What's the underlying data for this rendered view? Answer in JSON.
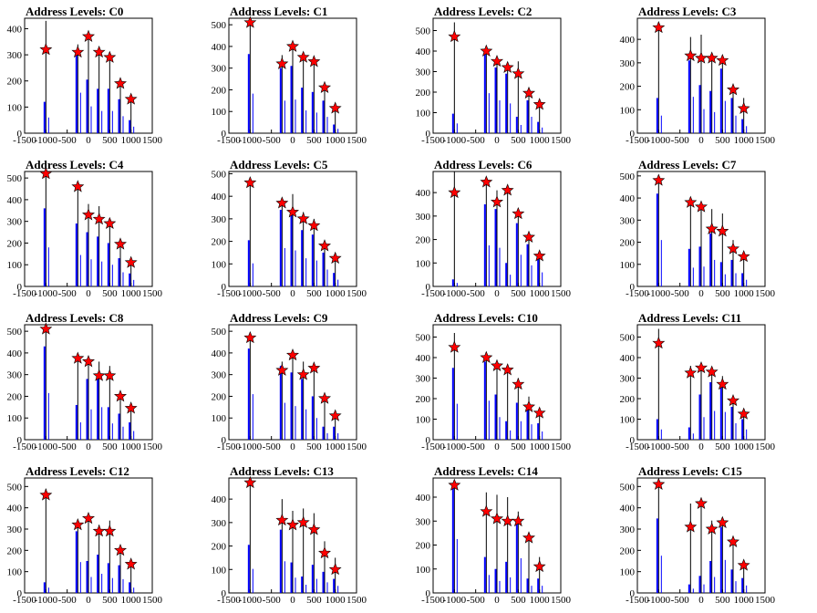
{
  "chart_data": [
    {
      "type": "bar",
      "title": "Address Levels: C0",
      "ylim": [
        0,
        440
      ],
      "yticks": [
        0,
        100,
        200,
        300,
        400
      ],
      "xlim": [
        -1500,
        1500
      ],
      "xticks": [
        -1500,
        -1000,
        -500,
        0,
        500,
        1000,
        1500
      ],
      "peaks": {
        "x": [
          -1000,
          -250,
          0,
          250,
          500,
          750,
          1000
        ],
        "black": [
          430,
          340,
          370,
          310,
          290,
          200,
          140
        ],
        "blue": [
          120,
          310,
          205,
          170,
          170,
          130,
          50
        ],
        "marker": [
          320,
          310,
          370,
          310,
          290,
          190,
          130
        ]
      }
    },
    {
      "type": "bar",
      "title": "Address Levels: C1",
      "ylim": [
        0,
        530
      ],
      "yticks": [
        0,
        100,
        200,
        300,
        400,
        500
      ],
      "xlim": [
        -1500,
        1500
      ],
      "xticks": [
        -1500,
        -1000,
        -500,
        0,
        500,
        1000,
        1500
      ],
      "peaks": {
        "x": [
          -1000,
          -250,
          0,
          250,
          500,
          750,
          1000
        ],
        "black": [
          520,
          360,
          400,
          360,
          340,
          220,
          130
        ],
        "blue": [
          365,
          300,
          310,
          210,
          190,
          150,
          40
        ],
        "marker": [
          510,
          320,
          400,
          350,
          330,
          210,
          115
        ]
      }
    },
    {
      "type": "bar",
      "title": "Address Levels: C2",
      "ylim": [
        0,
        560
      ],
      "yticks": [
        0,
        100,
        200,
        300,
        400,
        500
      ],
      "xlim": [
        -1500,
        1500
      ],
      "xticks": [
        -1500,
        -1000,
        -500,
        0,
        500,
        1000,
        1500
      ],
      "peaks": {
        "x": [
          -1000,
          -250,
          0,
          250,
          500,
          750,
          1000
        ],
        "black": [
          540,
          420,
          360,
          330,
          350,
          220,
          160
        ],
        "blue": [
          95,
          390,
          320,
          290,
          80,
          160,
          55
        ],
        "marker": [
          470,
          400,
          350,
          320,
          290,
          195,
          140
        ]
      }
    },
    {
      "type": "bar",
      "title": "Address Levels: C3",
      "ylim": [
        0,
        490
      ],
      "yticks": [
        0,
        100,
        200,
        300,
        400
      ],
      "xlim": [
        -1500,
        1500
      ],
      "xticks": [
        -1500,
        -1000,
        -500,
        0,
        500,
        1000,
        1500
      ],
      "peaks": {
        "x": [
          -1000,
          -250,
          0,
          250,
          500,
          750,
          1000
        ],
        "black": [
          470,
          410,
          420,
          330,
          310,
          200,
          150
        ],
        "blue": [
          150,
          310,
          205,
          180,
          275,
          150,
          60
        ],
        "marker": [
          450,
          330,
          320,
          320,
          310,
          185,
          105
        ]
      }
    },
    {
      "type": "bar",
      "title": "Address Levels: C4",
      "ylim": [
        0,
        530
      ],
      "yticks": [
        0,
        100,
        200,
        300,
        400,
        500
      ],
      "xlim": [
        -1500,
        1500
      ],
      "xticks": [
        -1500,
        -1000,
        -500,
        0,
        500,
        1000,
        1500
      ],
      "peaks": {
        "x": [
          -1000,
          -250,
          0,
          250,
          500,
          750,
          1000
        ],
        "black": [
          520,
          450,
          380,
          370,
          300,
          210,
          130
        ],
        "blue": [
          360,
          290,
          250,
          230,
          200,
          130,
          60
        ],
        "marker": [
          520,
          460,
          330,
          310,
          290,
          195,
          110
        ]
      }
    },
    {
      "type": "bar",
      "title": "Address Levels: C5",
      "ylim": [
        0,
        510
      ],
      "yticks": [
        0,
        100,
        200,
        300,
        400,
        500
      ],
      "xlim": [
        -1500,
        1500
      ],
      "xticks": [
        -1500,
        -1000,
        -500,
        0,
        500,
        1000,
        1500
      ],
      "peaks": {
        "x": [
          -1000,
          -250,
          0,
          250,
          500,
          750,
          1000
        ],
        "black": [
          470,
          370,
          410,
          330,
          300,
          200,
          140
        ],
        "blue": [
          205,
          340,
          320,
          250,
          230,
          150,
          60
        ],
        "marker": [
          460,
          370,
          330,
          300,
          270,
          180,
          125
        ]
      }
    },
    {
      "type": "bar",
      "title": "Address Levels: C6",
      "ylim": [
        0,
        490
      ],
      "yticks": [
        0,
        100,
        200,
        300,
        400
      ],
      "xlim": [
        -1500,
        1500
      ],
      "xticks": [
        -1500,
        -1000,
        -500,
        0,
        500,
        1000,
        1500
      ],
      "peaks": {
        "x": [
          -1000,
          -250,
          0,
          250,
          500,
          750,
          1000
        ],
        "black": [
          490,
          450,
          410,
          420,
          320,
          220,
          150
        ],
        "blue": [
          30,
          350,
          330,
          100,
          270,
          180,
          120
        ],
        "marker": [
          400,
          445,
          360,
          410,
          310,
          210,
          130
        ]
      }
    },
    {
      "type": "bar",
      "title": "Address Levels: C7",
      "ylim": [
        0,
        520
      ],
      "yticks": [
        0,
        100,
        200,
        300,
        400,
        500
      ],
      "xlim": [
        -1500,
        1500
      ],
      "xticks": [
        -1500,
        -1000,
        -500,
        0,
        500,
        1000,
        1500
      ],
      "peaks": {
        "x": [
          -1000,
          -250,
          0,
          250,
          500,
          750,
          1000
        ],
        "black": [
          500,
          380,
          370,
          350,
          330,
          210,
          150
        ],
        "blue": [
          420,
          170,
          180,
          240,
          110,
          120,
          60
        ],
        "marker": [
          480,
          380,
          360,
          260,
          250,
          170,
          135
        ]
      }
    },
    {
      "type": "bar",
      "title": "Address Levels: C8",
      "ylim": [
        0,
        530
      ],
      "yticks": [
        0,
        100,
        200,
        300,
        400,
        500
      ],
      "xlim": [
        -1500,
        1500
      ],
      "xticks": [
        -1500,
        -1000,
        -500,
        0,
        500,
        1000,
        1500
      ],
      "peaks": {
        "x": [
          -1000,
          -250,
          0,
          250,
          500,
          750,
          1000
        ],
        "black": [
          520,
          380,
          370,
          360,
          340,
          210,
          150
        ],
        "blue": [
          430,
          160,
          280,
          300,
          150,
          120,
          80
        ],
        "marker": [
          510,
          375,
          360,
          295,
          295,
          200,
          145
        ]
      }
    },
    {
      "type": "bar",
      "title": "Address Levels: C9",
      "ylim": [
        0,
        530
      ],
      "yticks": [
        0,
        100,
        200,
        300,
        400,
        500
      ],
      "xlim": [
        -1500,
        1500
      ],
      "xticks": [
        -1500,
        -1000,
        -500,
        0,
        500,
        1000,
        1500
      ],
      "peaks": {
        "x": [
          -1000,
          -250,
          0,
          250,
          500,
          750,
          1000
        ],
        "black": [
          490,
          360,
          410,
          360,
          340,
          210,
          130
        ],
        "blue": [
          420,
          340,
          310,
          280,
          200,
          60,
          60
        ],
        "marker": [
          470,
          320,
          390,
          300,
          330,
          190,
          110
        ]
      }
    },
    {
      "type": "bar",
      "title": "Address Levels: C10",
      "ylim": [
        0,
        560
      ],
      "yticks": [
        0,
        100,
        200,
        300,
        400,
        500
      ],
      "xlim": [
        -1500,
        1500
      ],
      "xticks": [
        -1500,
        -1000,
        -500,
        0,
        500,
        1000,
        1500
      ],
      "peaks": {
        "x": [
          -1000,
          -250,
          0,
          250,
          500,
          750,
          1000
        ],
        "black": [
          520,
          420,
          380,
          360,
          300,
          210,
          150
        ],
        "blue": [
          350,
          380,
          220,
          90,
          180,
          150,
          80
        ],
        "marker": [
          450,
          400,
          360,
          340,
          270,
          160,
          130
        ]
      }
    },
    {
      "type": "bar",
      "title": "Address Levels: C11",
      "ylim": [
        0,
        560
      ],
      "yticks": [
        0,
        100,
        200,
        300,
        400,
        500
      ],
      "xlim": [
        -1500,
        1500
      ],
      "xticks": [
        -1500,
        -1000,
        -500,
        0,
        500,
        1000,
        1500
      ],
      "peaks": {
        "x": [
          -1000,
          -250,
          0,
          250,
          500,
          750,
          1000
        ],
        "black": [
          540,
          360,
          370,
          340,
          310,
          210,
          150
        ],
        "blue": [
          100,
          60,
          220,
          280,
          270,
          160,
          100
        ],
        "marker": [
          470,
          325,
          350,
          330,
          270,
          190,
          125
        ]
      }
    },
    {
      "type": "bar",
      "title": "Address Levels: C12",
      "ylim": [
        0,
        540
      ],
      "yticks": [
        0,
        100,
        200,
        300,
        400,
        500
      ],
      "xlim": [
        -1500,
        1500
      ],
      "xticks": [
        -1500,
        -1000,
        -500,
        0,
        500,
        1000,
        1500
      ],
      "peaks": {
        "x": [
          -1000,
          -250,
          0,
          250,
          500,
          750,
          1000
        ],
        "black": [
          490,
          340,
          360,
          320,
          340,
          220,
          140
        ],
        "blue": [
          50,
          290,
          150,
          180,
          140,
          130,
          50
        ],
        "marker": [
          460,
          320,
          350,
          290,
          290,
          200,
          135
        ]
      }
    },
    {
      "type": "bar",
      "title": "Address Levels: C13",
      "ylim": [
        0,
        490
      ],
      "yticks": [
        0,
        100,
        200,
        300,
        400
      ],
      "xlim": [
        -1500,
        1500
      ],
      "xticks": [
        -1500,
        -1000,
        -500,
        0,
        500,
        1000,
        1500
      ],
      "peaks": {
        "x": [
          -1000,
          -250,
          0,
          250,
          500,
          750,
          1000
        ],
        "black": [
          480,
          400,
          350,
          360,
          340,
          220,
          150
        ],
        "blue": [
          205,
          270,
          130,
          70,
          120,
          90,
          60
        ],
        "marker": [
          470,
          310,
          290,
          300,
          270,
          170,
          100
        ]
      }
    },
    {
      "type": "bar",
      "title": "Address Levels: C14",
      "ylim": [
        0,
        480
      ],
      "yticks": [
        0,
        100,
        200,
        300,
        400
      ],
      "xlim": [
        -1500,
        1500
      ],
      "xticks": [
        -1500,
        -1000,
        -500,
        0,
        500,
        1000,
        1500
      ],
      "peaks": {
        "x": [
          -1000,
          -250,
          0,
          250,
          500,
          750,
          1000
        ],
        "black": [
          470,
          420,
          410,
          400,
          340,
          250,
          150
        ],
        "blue": [
          450,
          150,
          100,
          130,
          290,
          60,
          60
        ],
        "marker": [
          450,
          340,
          310,
          300,
          300,
          230,
          110
        ]
      }
    },
    {
      "type": "bar",
      "title": "Address Levels: C15",
      "ylim": [
        0,
        540
      ],
      "yticks": [
        0,
        100,
        200,
        300,
        400,
        500
      ],
      "xlim": [
        -1500,
        1500
      ],
      "xticks": [
        -1500,
        -1000,
        -500,
        0,
        500,
        1000,
        1500
      ],
      "peaks": {
        "x": [
          -1000,
          -250,
          0,
          250,
          500,
          750,
          1000
        ],
        "black": [
          510,
          420,
          430,
          340,
          330,
          260,
          140
        ],
        "blue": [
          350,
          40,
          80,
          150,
          310,
          110,
          70
        ],
        "marker": [
          510,
          310,
          420,
          300,
          330,
          240,
          130
        ]
      }
    }
  ],
  "colors": {
    "line_primary": "#000000",
    "line_secondary": "#0000ff",
    "marker": "#ff0000",
    "marker_edge": "#000000"
  }
}
